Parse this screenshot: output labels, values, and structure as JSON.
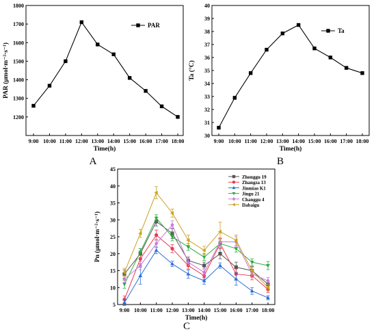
{
  "chart_data": [
    {
      "panel": "A",
      "type": "line",
      "xlabel": "Time(h)",
      "ylabel": "PAR (μmol·m⁻²·s⁻¹)",
      "ylim": [
        1100,
        1800
      ],
      "yticks": [
        1200,
        1300,
        1400,
        1500,
        1600,
        1700,
        1800
      ],
      "legend_position": "top-right",
      "x": [
        "9:00",
        "10:00",
        "11:00",
        "12:00",
        "13:00",
        "14:00",
        "15:00",
        "16:00",
        "17:00",
        "18:00"
      ],
      "series": [
        {
          "name": "PAR",
          "color": "#000000",
          "marker": "square",
          "values": [
            1260,
            1368,
            1500,
            1710,
            1590,
            1537,
            1410,
            1340,
            1257,
            1200
          ]
        }
      ]
    },
    {
      "panel": "B",
      "type": "line",
      "xlabel": "Time(h)",
      "ylabel": "Ta (°C)",
      "ylim": [
        30,
        40
      ],
      "yticks": [
        30,
        31,
        32,
        33,
        34,
        35,
        36,
        37,
        38,
        39,
        40
      ],
      "legend_position": "top-right",
      "x": [
        "9:00",
        "10:00",
        "11:00",
        "12:00",
        "13:00",
        "14:00",
        "15:00",
        "16:00",
        "17:00",
        "18:00"
      ],
      "series": [
        {
          "name": "Ta",
          "color": "#000000",
          "marker": "square",
          "values": [
            30.6,
            32.9,
            34.8,
            36.6,
            37.85,
            38.5,
            36.7,
            36.0,
            35.2,
            34.8
          ]
        }
      ]
    },
    {
      "panel": "C",
      "type": "line",
      "xlabel": "Time(h)",
      "ylabel": "Pn (μmol·m⁻²·s⁻¹)",
      "ylim": [
        5,
        45
      ],
      "yticks": [
        5,
        10,
        15,
        20,
        25,
        30,
        35,
        40,
        45
      ],
      "legend_position": "top-right",
      "x": [
        "9:00",
        "10:00",
        "11:00",
        "12:00",
        "13:00",
        "14:00",
        "15:00",
        "16:00",
        "17:00",
        "18:00"
      ],
      "series": [
        {
          "name": "Zhonggu 19",
          "color": "#555555",
          "marker": "square",
          "values": [
            14.0,
            20.0,
            29.5,
            26.0,
            18.0,
            16.5,
            20.0,
            16.0,
            15.0,
            11.0
          ],
          "errors": [
            1.2,
            1.5,
            1.3,
            1.5,
            1.0,
            1.0,
            1.5,
            1.5,
            1.2,
            1.0
          ]
        },
        {
          "name": "Zhangza 13",
          "color": "#e8384f",
          "marker": "circle",
          "values": [
            6.5,
            18.5,
            25.5,
            21.5,
            16.5,
            13.5,
            23.0,
            14.0,
            13.5,
            9.5
          ],
          "errors": [
            1.0,
            1.5,
            1.5,
            1.2,
            1.0,
            1.0,
            1.5,
            1.5,
            1.2,
            1.0
          ]
        },
        {
          "name": "Jinmiao K1",
          "color": "#2e6fd6",
          "marker": "triangle-up",
          "values": [
            5.5,
            13.5,
            21.0,
            17.0,
            14.0,
            12.0,
            16.5,
            12.5,
            9.0,
            7.0
          ],
          "errors": [
            0.8,
            2.5,
            1.0,
            0.8,
            1.2,
            1.0,
            0.8,
            1.8,
            1.0,
            0.6
          ]
        },
        {
          "name": "Jingu 21",
          "color": "#2eaa3e",
          "marker": "triangle-down",
          "values": [
            11.0,
            20.5,
            30.5,
            25.0,
            22.0,
            19.0,
            23.0,
            21.5,
            17.5,
            16.5
          ],
          "errors": [
            1.2,
            1.0,
            1.0,
            1.2,
            1.0,
            1.0,
            1.2,
            1.0,
            1.0,
            1.2
          ]
        },
        {
          "name": "Changgu 4",
          "color": "#c77ad6",
          "marker": "diamond",
          "values": [
            12.5,
            16.5,
            23.0,
            28.5,
            17.5,
            14.5,
            23.5,
            23.5,
            14.0,
            12.0
          ],
          "errors": [
            1.0,
            1.2,
            1.2,
            1.2,
            1.0,
            1.0,
            1.2,
            1.5,
            1.0,
            1.0
          ]
        },
        {
          "name": "Dabaigu",
          "color": "#c9a21b",
          "marker": "triangle-left",
          "values": [
            14.5,
            26.0,
            38.0,
            32.0,
            24.0,
            21.0,
            26.5,
            24.0,
            15.0,
            10.0
          ],
          "errors": [
            1.2,
            1.2,
            1.8,
            1.2,
            1.5,
            1.2,
            2.8,
            1.5,
            1.0,
            1.0
          ]
        }
      ]
    }
  ]
}
